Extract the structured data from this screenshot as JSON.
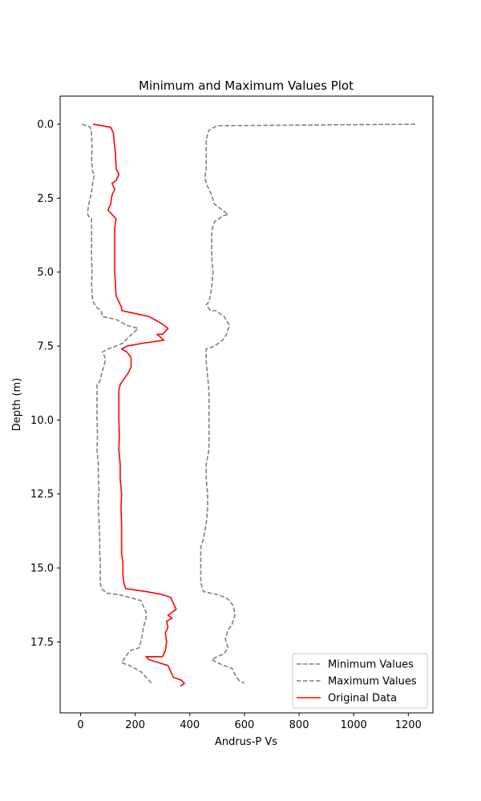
{
  "chart_data": {
    "type": "line",
    "title": "Minimum and Maximum Values Plot",
    "xlabel": "Andrus-P Vs",
    "ylabel": "Depth (m)",
    "xlim": [
      -75,
      1290
    ],
    "ylim": [
      19.9,
      -0.95
    ],
    "y_inverted": true,
    "grid": false,
    "legend_position": "lower right",
    "x_ticks": [
      0,
      200,
      400,
      600,
      800,
      1000,
      1200
    ],
    "x_tick_labels": [
      "0",
      "200",
      "400",
      "600",
      "800",
      "1000",
      "1200"
    ],
    "y_ticks": [
      0,
      2.5,
      5,
      7.5,
      10,
      12.5,
      15,
      17.5
    ],
    "y_tick_labels": [
      "0.0",
      "2.5",
      "5.0",
      "7.5",
      "10.0",
      "12.5",
      "15.0",
      "17.5"
    ],
    "series": [
      {
        "name": "Minimum Values",
        "color": "#808080",
        "style": "dashed",
        "points": [
          [
            5,
            0
          ],
          [
            35,
            0.1
          ],
          [
            40,
            0.3
          ],
          [
            42,
            0.8
          ],
          [
            40,
            1.2
          ],
          [
            44,
            1.6
          ],
          [
            50,
            1.7
          ],
          [
            44,
            2
          ],
          [
            40,
            2.3
          ],
          [
            35,
            2.5
          ],
          [
            30,
            2.7
          ],
          [
            25,
            3
          ],
          [
            28,
            3.1
          ],
          [
            40,
            3.2
          ],
          [
            40,
            3.5
          ],
          [
            40,
            4
          ],
          [
            40,
            4.5
          ],
          [
            42,
            5
          ],
          [
            40,
            5.4
          ],
          [
            43,
            5.8
          ],
          [
            45,
            6
          ],
          [
            60,
            6.2
          ],
          [
            75,
            6.3
          ],
          [
            80,
            6.5
          ],
          [
            130,
            6.6
          ],
          [
            170,
            6.8
          ],
          [
            210,
            6.9
          ],
          [
            200,
            7
          ],
          [
            175,
            7.2
          ],
          [
            155,
            7.4
          ],
          [
            130,
            7.5
          ],
          [
            100,
            7.6
          ],
          [
            80,
            7.7
          ],
          [
            90,
            7.9
          ],
          [
            90,
            8
          ],
          [
            85,
            8.2
          ],
          [
            75,
            8.5
          ],
          [
            70,
            8.7
          ],
          [
            60,
            8.8
          ],
          [
            60,
            9
          ],
          [
            60,
            9.5
          ],
          [
            60,
            10
          ],
          [
            62,
            10.5
          ],
          [
            60,
            11
          ],
          [
            65,
            11.5
          ],
          [
            65,
            12
          ],
          [
            68,
            12.4
          ],
          [
            65,
            12.6
          ],
          [
            65,
            13
          ],
          [
            68,
            13.5
          ],
          [
            70,
            14
          ],
          [
            70,
            14.5
          ],
          [
            72,
            14.8
          ],
          [
            72,
            15.2
          ],
          [
            72,
            15.5
          ],
          [
            76,
            15.7
          ],
          [
            95,
            15.85
          ],
          [
            140,
            15.9
          ],
          [
            180,
            16
          ],
          [
            220,
            16.1
          ],
          [
            240,
            16.5
          ],
          [
            240,
            16.7
          ],
          [
            230,
            17
          ],
          [
            225,
            17.3
          ],
          [
            220,
            17.5
          ],
          [
            215,
            17.7
          ],
          [
            180,
            17.8
          ],
          [
            150,
            18.2
          ],
          [
            180,
            18.3
          ],
          [
            220,
            18.5
          ],
          [
            240,
            18.7
          ],
          [
            250,
            18.8
          ],
          [
            260,
            18.9
          ]
        ]
      },
      {
        "name": "Maximum Values",
        "color": "#808080",
        "style": "dashed",
        "points": [
          [
            1225,
            0
          ],
          [
            500,
            0.05
          ],
          [
            470,
            0.2
          ],
          [
            460,
            0.5
          ],
          [
            460,
            1
          ],
          [
            460,
            1.5
          ],
          [
            455,
            1.8
          ],
          [
            460,
            2
          ],
          [
            470,
            2.2
          ],
          [
            480,
            2.4
          ],
          [
            490,
            2.7
          ],
          [
            540,
            3.05
          ],
          [
            520,
            3.1
          ],
          [
            490,
            3.3
          ],
          [
            480,
            3.6
          ],
          [
            480,
            4
          ],
          [
            480,
            4.5
          ],
          [
            485,
            5
          ],
          [
            480,
            5.5
          ],
          [
            475,
            5.8
          ],
          [
            470,
            6
          ],
          [
            460,
            6.1
          ],
          [
            475,
            6.3
          ],
          [
            495,
            6.3
          ],
          [
            525,
            6.5
          ],
          [
            545,
            6.8
          ],
          [
            535,
            7.1
          ],
          [
            520,
            7.3
          ],
          [
            490,
            7.5
          ],
          [
            460,
            7.6
          ],
          [
            460,
            8
          ],
          [
            465,
            8.5
          ],
          [
            470,
            9
          ],
          [
            470,
            9.5
          ],
          [
            470,
            10
          ],
          [
            470,
            10.5
          ],
          [
            470,
            11
          ],
          [
            460,
            11.5
          ],
          [
            460,
            12
          ],
          [
            465,
            12.5
          ],
          [
            465,
            13
          ],
          [
            460,
            13.5
          ],
          [
            450,
            14
          ],
          [
            440,
            14.3
          ],
          [
            440,
            14.8
          ],
          [
            440,
            15.2
          ],
          [
            440,
            15.5
          ],
          [
            450,
            15.8
          ],
          [
            500,
            15.9
          ],
          [
            530,
            16
          ],
          [
            545,
            16.1
          ],
          [
            560,
            16.3
          ],
          [
            565,
            16.6
          ],
          [
            555,
            16.9
          ],
          [
            540,
            17.1
          ],
          [
            530,
            17.4
          ],
          [
            540,
            17.7
          ],
          [
            525,
            17.9
          ],
          [
            500,
            18
          ],
          [
            480,
            18.1
          ],
          [
            500,
            18.2
          ],
          [
            525,
            18.3
          ],
          [
            555,
            18.4
          ],
          [
            565,
            18.6
          ],
          [
            580,
            18.8
          ],
          [
            600,
            18.9
          ]
        ]
      },
      {
        "name": "Original Data",
        "color": "#ff0000",
        "style": "solid",
        "points": [
          [
            45,
            0
          ],
          [
            110,
            0.1
          ],
          [
            120,
            0.3
          ],
          [
            122,
            0.5
          ],
          [
            125,
            0.8
          ],
          [
            128,
            1
          ],
          [
            130,
            1.5
          ],
          [
            140,
            1.7
          ],
          [
            130,
            1.9
          ],
          [
            115,
            2
          ],
          [
            125,
            2.2
          ],
          [
            115,
            2.4
          ],
          [
            110,
            2.7
          ],
          [
            100,
            2.9
          ],
          [
            110,
            3
          ],
          [
            120,
            3.1
          ],
          [
            130,
            3.2
          ],
          [
            125,
            3.5
          ],
          [
            125,
            4
          ],
          [
            125,
            4.5
          ],
          [
            125,
            5
          ],
          [
            128,
            5.5
          ],
          [
            130,
            5.8
          ],
          [
            140,
            6
          ],
          [
            150,
            6.2
          ],
          [
            150,
            6.3
          ],
          [
            200,
            6.4
          ],
          [
            250,
            6.5
          ],
          [
            290,
            6.7
          ],
          [
            320,
            6.9
          ],
          [
            300,
            7.1
          ],
          [
            280,
            7.1
          ],
          [
            305,
            7.3
          ],
          [
            230,
            7.4
          ],
          [
            170,
            7.5
          ],
          [
            150,
            7.6
          ],
          [
            170,
            7.7
          ],
          [
            185,
            7.9
          ],
          [
            185,
            8.2
          ],
          [
            175,
            8.4
          ],
          [
            160,
            8.6
          ],
          [
            145,
            8.8
          ],
          [
            140,
            9
          ],
          [
            140,
            9.5
          ],
          [
            140,
            10
          ],
          [
            142,
            10.5
          ],
          [
            140,
            11
          ],
          [
            145,
            11.5
          ],
          [
            145,
            12
          ],
          [
            150,
            12.5
          ],
          [
            148,
            13
          ],
          [
            150,
            13.5
          ],
          [
            150,
            14
          ],
          [
            150,
            14.5
          ],
          [
            155,
            14.8
          ],
          [
            155,
            15.2
          ],
          [
            158,
            15.5
          ],
          [
            165,
            15.7
          ],
          [
            240,
            15.8
          ],
          [
            300,
            15.9
          ],
          [
            330,
            16
          ],
          [
            340,
            16.2
          ],
          [
            350,
            16.4
          ],
          [
            320,
            16.6
          ],
          [
            335,
            16.7
          ],
          [
            315,
            16.8
          ],
          [
            320,
            17
          ],
          [
            310,
            17.2
          ],
          [
            315,
            17.5
          ],
          [
            310,
            17.8
          ],
          [
            300,
            18
          ],
          [
            240,
            18
          ],
          [
            250,
            18.1
          ],
          [
            320,
            18.3
          ],
          [
            330,
            18.5
          ],
          [
            340,
            18.7
          ],
          [
            370,
            18.8
          ],
          [
            380,
            18.9
          ],
          [
            365,
            19
          ]
        ]
      }
    ]
  }
}
